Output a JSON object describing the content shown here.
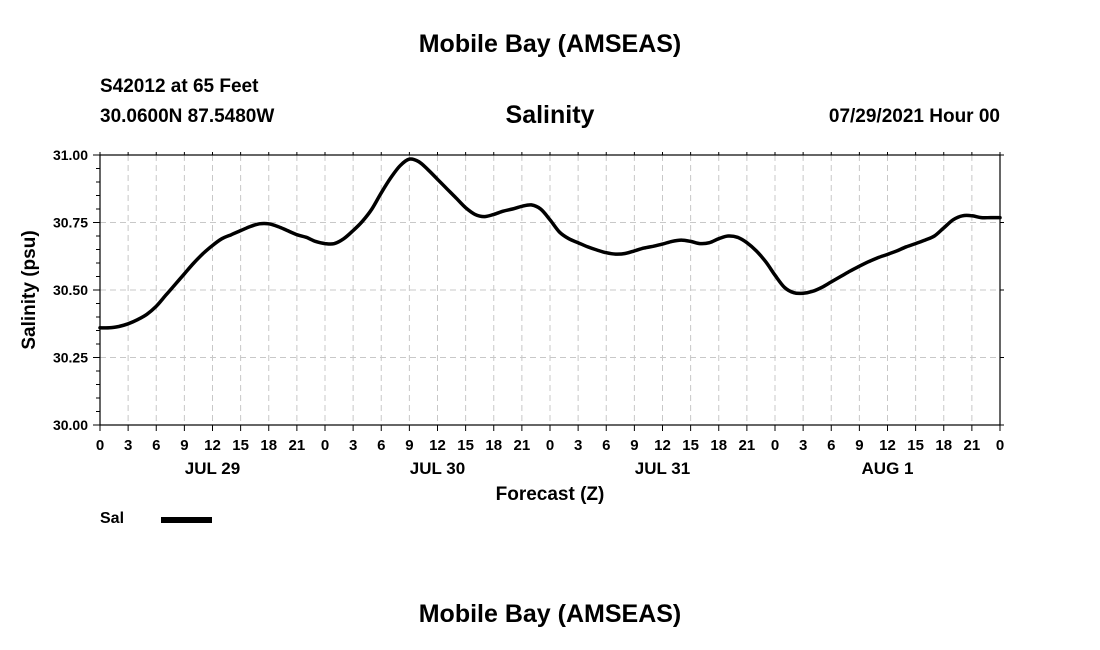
{
  "header": {
    "title": "Mobile Bay (AMSEAS)",
    "station": "S42012 at 65 Feet",
    "coordinates": "30.0600N  87.5480W",
    "chart_title": "Salinity",
    "run_time": "07/29/2021 Hour 00"
  },
  "footer": {
    "title": "Mobile Bay (AMSEAS)"
  },
  "legend": {
    "label": "Sal",
    "color": "#000000"
  },
  "chart_data": {
    "type": "line",
    "title": "Salinity",
    "xlabel": "Forecast (Z)",
    "ylabel": "Salinity (psu)",
    "xlim": [
      0,
      96
    ],
    "ylim": [
      30.0,
      31.0
    ],
    "grid": true,
    "legend_position": "bottom-left",
    "x_ticks": [
      0,
      3,
      6,
      9,
      12,
      15,
      18,
      21,
      24,
      27,
      30,
      33,
      36,
      39,
      42,
      45,
      48,
      51,
      54,
      57,
      60,
      63,
      66,
      69,
      72,
      75,
      78,
      81,
      84,
      87,
      90,
      93,
      96
    ],
    "x_tick_labels": [
      "0",
      "3",
      "6",
      "9",
      "12",
      "15",
      "18",
      "21",
      "0",
      "3",
      "6",
      "9",
      "12",
      "15",
      "18",
      "21",
      "0",
      "3",
      "6",
      "9",
      "12",
      "15",
      "18",
      "21",
      "0",
      "3",
      "6",
      "9",
      "12",
      "15",
      "18",
      "21",
      "0"
    ],
    "date_labels": [
      {
        "x": 12,
        "label": "JUL 29"
      },
      {
        "x": 36,
        "label": "JUL 30"
      },
      {
        "x": 60,
        "label": "JUL 31"
      },
      {
        "x": 84,
        "label": "AUG 1"
      }
    ],
    "y_ticks": [
      30.0,
      30.25,
      30.5,
      30.75,
      31.0
    ],
    "y_tick_labels": [
      "30.00",
      "30.25",
      "30.50",
      "30.75",
      "31.00"
    ],
    "series": [
      {
        "name": "Sal",
        "color": "#000000",
        "x": [
          0,
          1,
          2,
          3,
          4,
          5,
          6,
          7,
          8,
          9,
          10,
          11,
          12,
          13,
          14,
          15,
          16,
          17,
          18,
          19,
          20,
          21,
          22,
          23,
          24,
          25,
          26,
          27,
          28,
          29,
          30,
          31,
          32,
          33,
          34,
          35,
          36,
          37,
          38,
          39,
          40,
          41,
          42,
          43,
          44,
          45,
          46,
          47,
          48,
          49,
          50,
          51,
          52,
          53,
          54,
          55,
          56,
          57,
          58,
          59,
          60,
          61,
          62,
          63,
          64,
          65,
          66,
          67,
          68,
          69,
          70,
          71,
          72,
          73,
          74,
          75,
          76,
          77,
          78,
          79,
          80,
          81,
          82,
          83,
          84,
          85,
          86,
          87,
          88,
          89,
          90,
          91,
          92,
          93,
          94,
          95,
          96
        ],
        "values": [
          30.36,
          30.36,
          30.365,
          30.375,
          30.39,
          30.41,
          30.44,
          30.48,
          30.52,
          30.56,
          30.6,
          30.635,
          30.665,
          30.69,
          30.705,
          30.72,
          30.735,
          30.745,
          30.745,
          30.735,
          30.72,
          30.705,
          30.695,
          30.68,
          30.672,
          30.672,
          30.69,
          30.72,
          30.755,
          30.8,
          30.86,
          30.915,
          30.96,
          30.985,
          30.975,
          30.945,
          30.91,
          30.875,
          30.84,
          30.805,
          30.78,
          30.772,
          30.78,
          30.792,
          30.8,
          30.81,
          30.815,
          30.8,
          30.76,
          30.715,
          30.69,
          30.675,
          30.66,
          30.648,
          30.638,
          30.633,
          30.635,
          30.645,
          30.655,
          30.662,
          30.67,
          30.68,
          30.685,
          30.68,
          30.672,
          30.675,
          30.69,
          30.7,
          30.695,
          30.675,
          30.645,
          30.605,
          30.555,
          30.51,
          30.49,
          30.488,
          30.495,
          30.51,
          30.53,
          30.55,
          30.57,
          30.588,
          30.605,
          30.62,
          30.632,
          30.645,
          30.66,
          30.672,
          30.685,
          30.7,
          30.73,
          30.76,
          30.775,
          30.775,
          30.768,
          30.768,
          30.768
        ]
      }
    ]
  }
}
